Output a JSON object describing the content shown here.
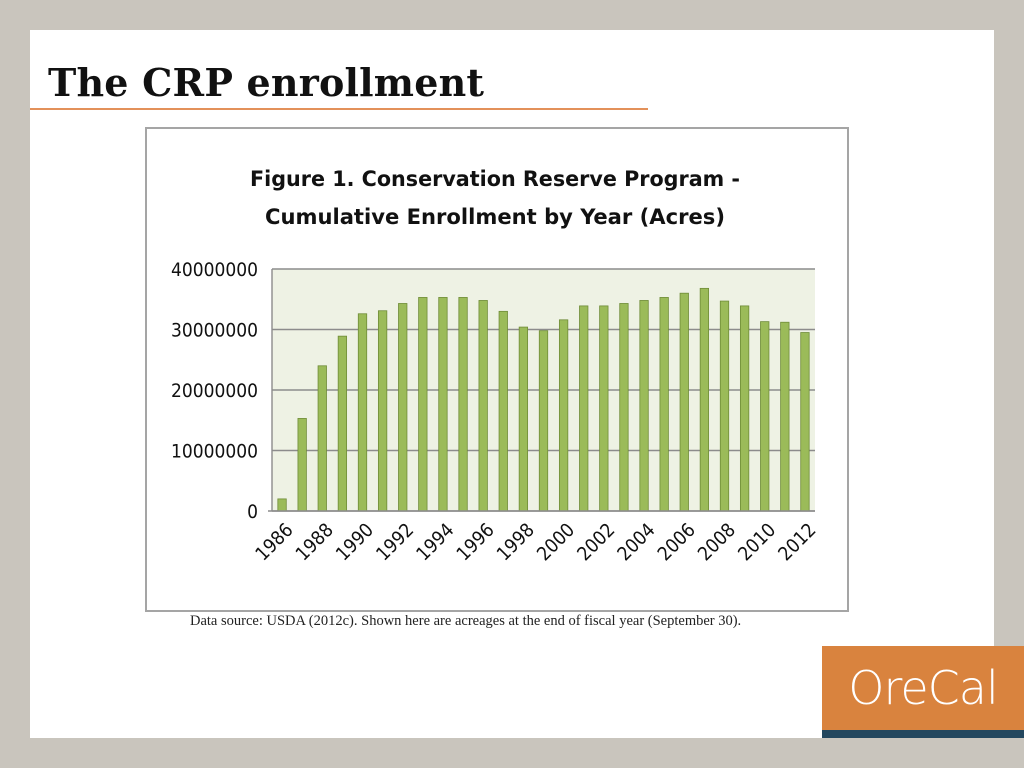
{
  "slide": {
    "title": "The CRP enrollment"
  },
  "source_note": "Data source: USDA (2012c).   Shown here are acreages at the end of fiscal year (September 30).",
  "logo": {
    "text": "OreCal"
  },
  "colors": {
    "bar": "#9bbb59",
    "bar_stroke": "#6f8c38",
    "plot_bg": "#eef2e4",
    "grid": "#8c8c8c",
    "accent": "#e3915a",
    "logo_bg": "#d9833e",
    "logo_bar": "#23475e"
  },
  "chart_data": {
    "type": "bar",
    "title_lines": [
      "Figure 1. Conservation Reserve Program -",
      "Cumulative Enrollment by Year (Acres)"
    ],
    "categories": [
      "1986",
      "1987",
      "1988",
      "1989",
      "1990",
      "1991",
      "1992",
      "1993",
      "1994",
      "1995",
      "1996",
      "1997",
      "1998",
      "1999",
      "2000",
      "2001",
      "2002",
      "2003",
      "2004",
      "2005",
      "2006",
      "2007",
      "2008",
      "2009",
      "2010",
      "2011",
      "2012"
    ],
    "values": [
      2000000,
      15300000,
      24000000,
      28900000,
      32600000,
      33100000,
      34300000,
      35300000,
      35300000,
      35300000,
      34800000,
      33000000,
      30400000,
      29800000,
      31600000,
      33900000,
      33900000,
      34300000,
      34800000,
      35300000,
      36000000,
      36800000,
      34700000,
      33900000,
      31300000,
      31200000,
      29500000
    ],
    "x_tick_labels": [
      "1986",
      "1988",
      "1990",
      "1992",
      "1994",
      "1996",
      "1998",
      "2000",
      "2002",
      "2004",
      "2006",
      "2008",
      "2010",
      "2012"
    ],
    "y_ticks": [
      0,
      10000000,
      20000000,
      30000000,
      40000000
    ],
    "y_tick_labels": [
      "0",
      "10000000",
      "20000000",
      "30000000",
      "40000000"
    ],
    "ylim": [
      0,
      40000000
    ],
    "xlabel": "",
    "ylabel": "",
    "grid": true,
    "legend": "none"
  }
}
